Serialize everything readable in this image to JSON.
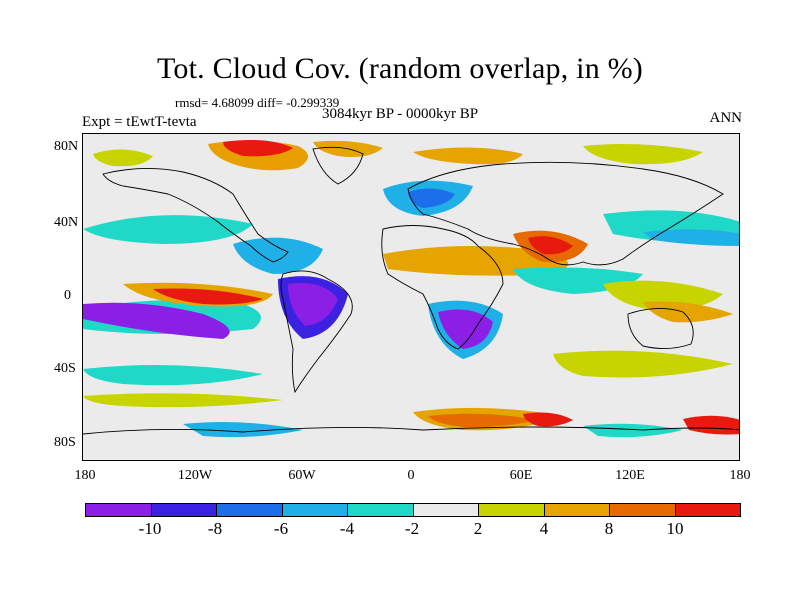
{
  "title": "Tot. Cloud Cov. (random overlap, in %)",
  "stats": "rmsd= 4.68099 diff= -0.299339",
  "period": "3084kyr BP - 0000kyr BP",
  "experiment": "Expt = tEwtT-tevta",
  "season": "ANN",
  "lat_labels": [
    "80N",
    "40N",
    "0",
    "40S",
    "80S"
  ],
  "lon_labels": [
    "180",
    "120W",
    "60W",
    "0",
    "60E",
    "120E",
    "180"
  ],
  "colorbar": {
    "colors": [
      "#8c1fe6",
      "#3b22e0",
      "#1c6fe8",
      "#1fb0e8",
      "#20d8c8",
      "#ebebeb",
      "#c8d400",
      "#e6a400",
      "#e66a00",
      "#e8190f"
    ],
    "labels": [
      "-10",
      "-8",
      "-6",
      "-4",
      "-2",
      "2",
      "4",
      "8",
      "10"
    ]
  },
  "legend_colors": {
    "strong_decrease": "#8c1fe6",
    "neutral": "#ebebeb",
    "strong_increase": "#e8190f"
  }
}
